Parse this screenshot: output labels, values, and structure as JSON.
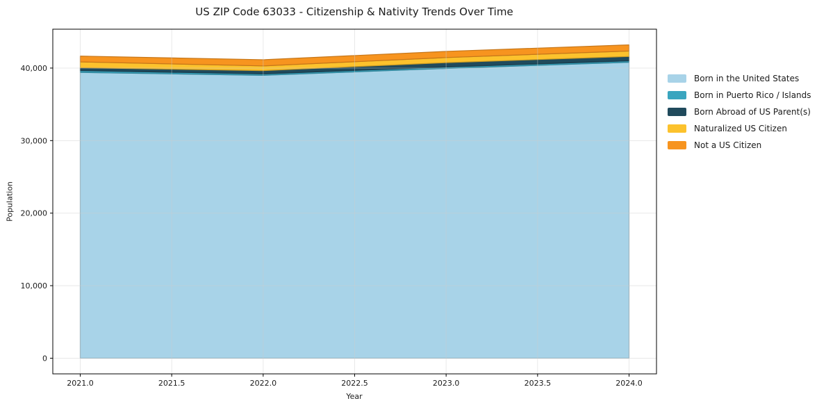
{
  "chart_data": {
    "type": "area",
    "stacked": true,
    "title": "US ZIP Code 63033 - Citizenship & Nativity Trends Over Time",
    "xlabel": "Year",
    "ylabel": "Population",
    "x": [
      2021,
      2022,
      2023,
      2024
    ],
    "series": [
      {
        "name": "Born in the United States",
        "color": "#a8d3e8",
        "values": [
          39400,
          39000,
          39950,
          40800
        ]
      },
      {
        "name": "Born in Puerto Rico / Islands",
        "color": "#3aa5bf",
        "values": [
          250,
          200,
          200,
          200
        ]
      },
      {
        "name": "Born Abroad of US Parent(s)",
        "color": "#204a5c",
        "values": [
          400,
          450,
          600,
          600
        ]
      },
      {
        "name": "Naturalized US Citizen",
        "color": "#fcc22d",
        "values": [
          800,
          650,
          700,
          750
        ]
      },
      {
        "name": "Not a US Citizen",
        "color": "#f7941f",
        "values": [
          800,
          850,
          850,
          850
        ]
      }
    ],
    "totals": [
      41650,
      41150,
      42300,
      43200
    ],
    "xlim": [
      2020.85,
      2024.15
    ],
    "ylim": [
      -2160,
      45360
    ],
    "xticks": {
      "values": [
        2021,
        2021.5,
        2022,
        2022.5,
        2023,
        2023.5,
        2024
      ],
      "labels": [
        "2021.0",
        "2021.5",
        "2022.0",
        "2022.5",
        "2023.0",
        "2023.5",
        "2024.0"
      ]
    },
    "yticks": {
      "values": [
        0,
        10000,
        20000,
        30000,
        40000
      ],
      "labels": [
        "0",
        "10,000",
        "20,000",
        "30,000",
        "40,000"
      ]
    },
    "grid": true,
    "legend_position": "center right",
    "background_color": "#ffffff",
    "frame_color": "#000000",
    "grid_color": "#cccccc",
    "text_color": "#1a1a1a"
  }
}
